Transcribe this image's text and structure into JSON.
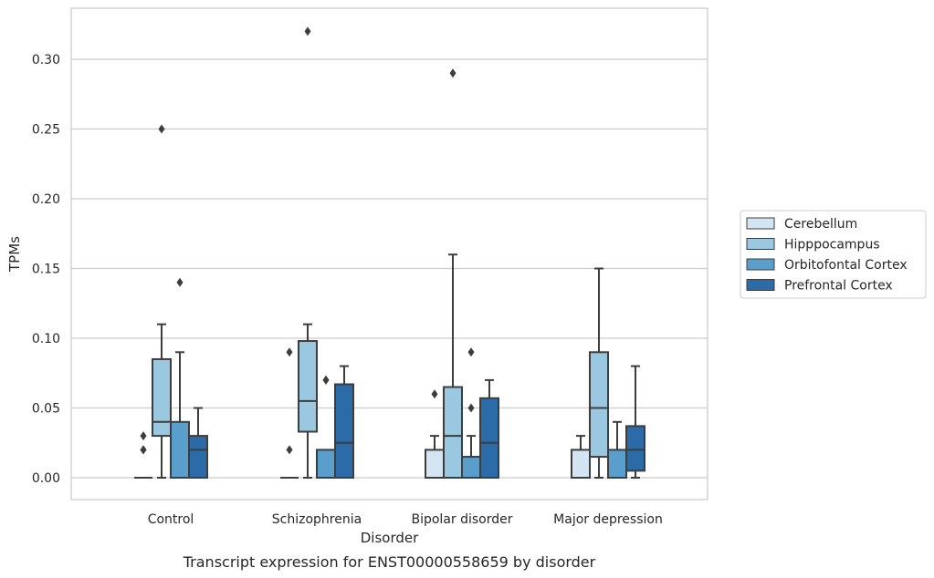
{
  "chart_data": {
    "type": "box",
    "title": "",
    "caption": "Transcript expression for ENST00000558659 by disorder",
    "xlabel": "Disorder",
    "ylabel": "TPMs",
    "ylim": [
      -0.016,
      0.337
    ],
    "yticks": [
      "0.00",
      "0.05",
      "0.10",
      "0.15",
      "0.20",
      "0.25",
      "0.30"
    ],
    "grid": "horizontal",
    "legend_position": "right",
    "categories": [
      "Control",
      "Schizophrenia",
      "Bipolar disorder",
      "Major depression"
    ],
    "series": [
      {
        "name": "Cerebellum",
        "color": "#d3e4f3",
        "boxes": [
          {
            "q1": 0.0,
            "median": 0.0,
            "q3": 0.0,
            "whisker_low": 0.0,
            "whisker_high": 0.0,
            "outliers": [
              0.02,
              0.02,
              0.03
            ]
          },
          {
            "q1": 0.0,
            "median": 0.0,
            "q3": 0.0,
            "whisker_low": 0.0,
            "whisker_high": 0.0,
            "outliers": [
              0.02,
              0.09
            ]
          },
          {
            "q1": 0.0,
            "median": 0.0,
            "q3": 0.02,
            "whisker_low": 0.0,
            "whisker_high": 0.03,
            "outliers": [
              0.06
            ]
          },
          {
            "q1": 0.0,
            "median": 0.0,
            "q3": 0.02,
            "whisker_low": 0.0,
            "whisker_high": 0.03,
            "outliers": []
          }
        ]
      },
      {
        "name": "Hipppocampus",
        "color": "#9ac8e0",
        "boxes": [
          {
            "q1": 0.03,
            "median": 0.04,
            "q3": 0.085,
            "whisker_low": 0.0,
            "whisker_high": 0.11,
            "outliers": [
              0.25
            ]
          },
          {
            "q1": 0.033,
            "median": 0.055,
            "q3": 0.098,
            "whisker_low": 0.0,
            "whisker_high": 0.11,
            "outliers": [
              0.32
            ]
          },
          {
            "q1": 0.0,
            "median": 0.03,
            "q3": 0.065,
            "whisker_low": 0.0,
            "whisker_high": 0.16,
            "outliers": [
              0.29
            ]
          },
          {
            "q1": 0.015,
            "median": 0.05,
            "q3": 0.09,
            "whisker_low": 0.0,
            "whisker_high": 0.15,
            "outliers": []
          }
        ]
      },
      {
        "name": "Orbitofontal Cortex",
        "color": "#5a9fcc",
        "boxes": [
          {
            "q1": 0.0,
            "median": 0.0,
            "q3": 0.04,
            "whisker_low": 0.0,
            "whisker_high": 0.09,
            "outliers": [
              0.14
            ]
          },
          {
            "q1": 0.0,
            "median": 0.0,
            "q3": 0.02,
            "whisker_low": 0.0,
            "whisker_high": 0.02,
            "outliers": [
              0.07,
              0.07
            ]
          },
          {
            "q1": 0.0,
            "median": 0.0,
            "q3": 0.015,
            "whisker_low": 0.0,
            "whisker_high": 0.03,
            "outliers": [
              0.05,
              0.09
            ]
          },
          {
            "q1": 0.0,
            "median": 0.0,
            "q3": 0.02,
            "whisker_low": 0.0,
            "whisker_high": 0.04,
            "outliers": []
          }
        ]
      },
      {
        "name": "Prefrontal Cortex",
        "color": "#2b6ba8",
        "boxes": [
          {
            "q1": 0.0,
            "median": 0.02,
            "q3": 0.03,
            "whisker_low": 0.0,
            "whisker_high": 0.05,
            "outliers": []
          },
          {
            "q1": 0.0,
            "median": 0.025,
            "q3": 0.067,
            "whisker_low": 0.0,
            "whisker_high": 0.08,
            "outliers": []
          },
          {
            "q1": 0.0,
            "median": 0.025,
            "q3": 0.057,
            "whisker_low": 0.0,
            "whisker_high": 0.07,
            "outliers": []
          },
          {
            "q1": 0.005,
            "median": 0.02,
            "q3": 0.037,
            "whisker_low": 0.0,
            "whisker_high": 0.08,
            "outliers": []
          }
        ]
      }
    ]
  }
}
